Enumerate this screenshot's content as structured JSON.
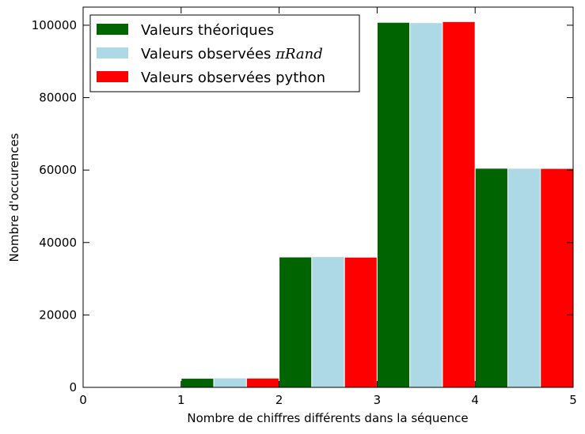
{
  "chart_data": {
    "type": "bar",
    "x": [
      1,
      2,
      3,
      4
    ],
    "series": [
      {
        "name": "Valeurs théoriques",
        "color": "#006400",
        "values": [
          2500,
          36000,
          100800,
          60500
        ]
      },
      {
        "name": "Valeurs observées ",
        "name_math": "πRand",
        "color": "#add8e6",
        "values": [
          2600,
          36100,
          100700,
          60500
        ]
      },
      {
        "name": "Valeurs observées python",
        "color": "#ff0000",
        "values": [
          2550,
          35950,
          101000,
          60450
        ]
      }
    ],
    "xlabel": "Nombre de chiffres différents dans la séquence",
    "ylabel": "Nombre d'occurences",
    "xlim": [
      0,
      5
    ],
    "ylim": [
      0,
      105000
    ],
    "xticks": [
      "0",
      "1",
      "2",
      "3",
      "4",
      "5"
    ],
    "yticks": [
      "0",
      "20000",
      "40000",
      "60000",
      "80000",
      "100000"
    ],
    "grid": false,
    "legend_position": "top-left"
  }
}
